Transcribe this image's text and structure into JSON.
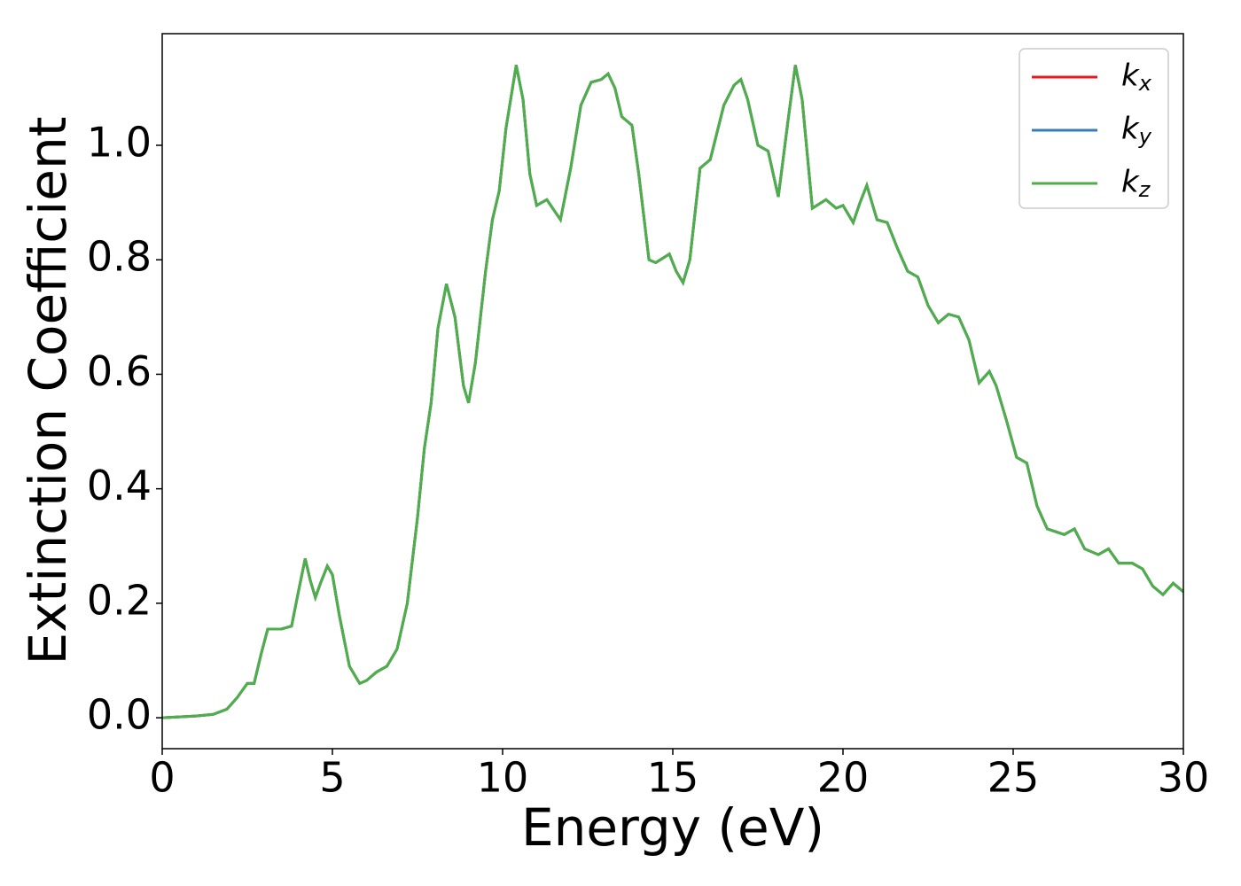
{
  "chart_data": {
    "type": "line",
    "xlabel": "Energy (eV)",
    "ylabel": "Extinction Coefficient",
    "x": [
      0,
      1,
      1.5,
      1.9,
      2.2,
      2.5,
      2.7,
      2.9,
      3.1,
      3.5,
      3.8,
      4.0,
      4.2,
      4.35,
      4.5,
      4.65,
      4.85,
      5.0,
      5.2,
      5.5,
      5.8,
      6.0,
      6.3,
      6.6,
      6.9,
      7.2,
      7.5,
      7.7,
      7.9,
      8.1,
      8.35,
      8.6,
      8.85,
      9.0,
      9.2,
      9.5,
      9.7,
      9.9,
      10.1,
      10.4,
      10.6,
      10.8,
      11.0,
      11.3,
      11.7,
      12.0,
      12.3,
      12.6,
      12.9,
      13.1,
      13.3,
      13.5,
      13.8,
      14.0,
      14.3,
      14.5,
      14.9,
      15.1,
      15.3,
      15.5,
      15.8,
      16.1,
      16.5,
      16.8,
      17.0,
      17.2,
      17.5,
      17.8,
      18.1,
      18.4,
      18.6,
      18.8,
      19.1,
      19.5,
      19.8,
      20.0,
      20.3,
      20.5,
      20.7,
      21.0,
      21.3,
      21.6,
      21.9,
      22.2,
      22.5,
      22.8,
      23.1,
      23.4,
      23.7,
      24.0,
      24.3,
      24.5,
      24.8,
      25.1,
      25.4,
      25.7,
      26.0,
      26.5,
      26.8,
      27.1,
      27.5,
      27.8,
      28.1,
      28.5,
      28.8,
      29.1,
      29.4,
      29.7,
      30.0
    ],
    "series": [
      {
        "name": "kx",
        "color": "#e41a1c",
        "values": [
          0,
          0.003,
          0.006,
          0.015,
          0.035,
          0.06,
          0.06,
          0.11,
          0.155,
          0.155,
          0.16,
          0.22,
          0.278,
          0.24,
          0.21,
          0.235,
          0.265,
          0.25,
          0.18,
          0.09,
          0.06,
          0.065,
          0.08,
          0.09,
          0.12,
          0.2,
          0.35,
          0.47,
          0.55,
          0.68,
          0.758,
          0.7,
          0.58,
          0.55,
          0.62,
          0.78,
          0.87,
          0.92,
          1.03,
          1.14,
          1.08,
          0.95,
          0.895,
          0.905,
          0.87,
          0.96,
          1.07,
          1.11,
          1.115,
          1.125,
          1.1,
          1.05,
          1.035,
          0.95,
          0.8,
          0.795,
          0.81,
          0.78,
          0.76,
          0.8,
          0.96,
          0.975,
          1.07,
          1.105,
          1.115,
          1.08,
          1.0,
          0.99,
          0.91,
          1.05,
          1.14,
          1.08,
          0.89,
          0.905,
          0.89,
          0.895,
          0.865,
          0.9,
          0.93,
          0.87,
          0.865,
          0.82,
          0.78,
          0.77,
          0.72,
          0.69,
          0.705,
          0.7,
          0.66,
          0.585,
          0.605,
          0.58,
          0.52,
          0.455,
          0.445,
          0.37,
          0.33,
          0.32,
          0.33,
          0.295,
          0.285,
          0.295,
          0.27,
          0.27,
          0.26,
          0.23,
          0.215,
          0.235,
          0.22
        ]
      },
      {
        "name": "ky",
        "color": "#377eb8",
        "values": [
          0,
          0.003,
          0.006,
          0.015,
          0.035,
          0.06,
          0.06,
          0.11,
          0.155,
          0.155,
          0.16,
          0.22,
          0.278,
          0.24,
          0.21,
          0.235,
          0.265,
          0.25,
          0.18,
          0.09,
          0.06,
          0.065,
          0.08,
          0.09,
          0.12,
          0.2,
          0.35,
          0.47,
          0.55,
          0.68,
          0.758,
          0.7,
          0.58,
          0.55,
          0.62,
          0.78,
          0.87,
          0.92,
          1.03,
          1.14,
          1.08,
          0.95,
          0.895,
          0.905,
          0.87,
          0.96,
          1.07,
          1.11,
          1.115,
          1.125,
          1.1,
          1.05,
          1.035,
          0.95,
          0.8,
          0.795,
          0.81,
          0.78,
          0.76,
          0.8,
          0.96,
          0.975,
          1.07,
          1.105,
          1.115,
          1.08,
          1.0,
          0.99,
          0.91,
          1.05,
          1.14,
          1.08,
          0.89,
          0.905,
          0.89,
          0.895,
          0.865,
          0.9,
          0.93,
          0.87,
          0.865,
          0.82,
          0.78,
          0.77,
          0.72,
          0.69,
          0.705,
          0.7,
          0.66,
          0.585,
          0.605,
          0.58,
          0.52,
          0.455,
          0.445,
          0.37,
          0.33,
          0.32,
          0.33,
          0.295,
          0.285,
          0.295,
          0.27,
          0.27,
          0.26,
          0.23,
          0.215,
          0.235,
          0.22
        ]
      },
      {
        "name": "kz",
        "color": "#4daf4a",
        "values": [
          0,
          0.003,
          0.006,
          0.015,
          0.035,
          0.06,
          0.06,
          0.11,
          0.155,
          0.155,
          0.16,
          0.22,
          0.278,
          0.24,
          0.21,
          0.235,
          0.265,
          0.25,
          0.18,
          0.09,
          0.06,
          0.065,
          0.08,
          0.09,
          0.12,
          0.2,
          0.35,
          0.47,
          0.55,
          0.68,
          0.758,
          0.7,
          0.58,
          0.55,
          0.62,
          0.78,
          0.87,
          0.92,
          1.03,
          1.14,
          1.08,
          0.95,
          0.895,
          0.905,
          0.87,
          0.96,
          1.07,
          1.11,
          1.115,
          1.125,
          1.1,
          1.05,
          1.035,
          0.95,
          0.8,
          0.795,
          0.81,
          0.78,
          0.76,
          0.8,
          0.96,
          0.975,
          1.07,
          1.105,
          1.115,
          1.08,
          1.0,
          0.99,
          0.91,
          1.05,
          1.14,
          1.08,
          0.89,
          0.905,
          0.89,
          0.895,
          0.865,
          0.9,
          0.93,
          0.87,
          0.865,
          0.82,
          0.78,
          0.77,
          0.72,
          0.69,
          0.705,
          0.7,
          0.66,
          0.585,
          0.605,
          0.58,
          0.52,
          0.455,
          0.445,
          0.37,
          0.33,
          0.32,
          0.33,
          0.295,
          0.285,
          0.295,
          0.27,
          0.27,
          0.26,
          0.23,
          0.215,
          0.235,
          0.22
        ]
      }
    ],
    "xlim": [
      0,
      30
    ],
    "xticks": [
      0,
      5,
      10,
      15,
      20,
      25,
      30
    ],
    "ylim": [
      -0.054,
      1.195
    ],
    "yticks": [
      {
        "value": 0,
        "label": "0.0"
      },
      0.2,
      0.4,
      0.6,
      0.8,
      {
        "value": 1,
        "label": "1.0"
      }
    ],
    "grid": false,
    "legend": "upper right"
  }
}
